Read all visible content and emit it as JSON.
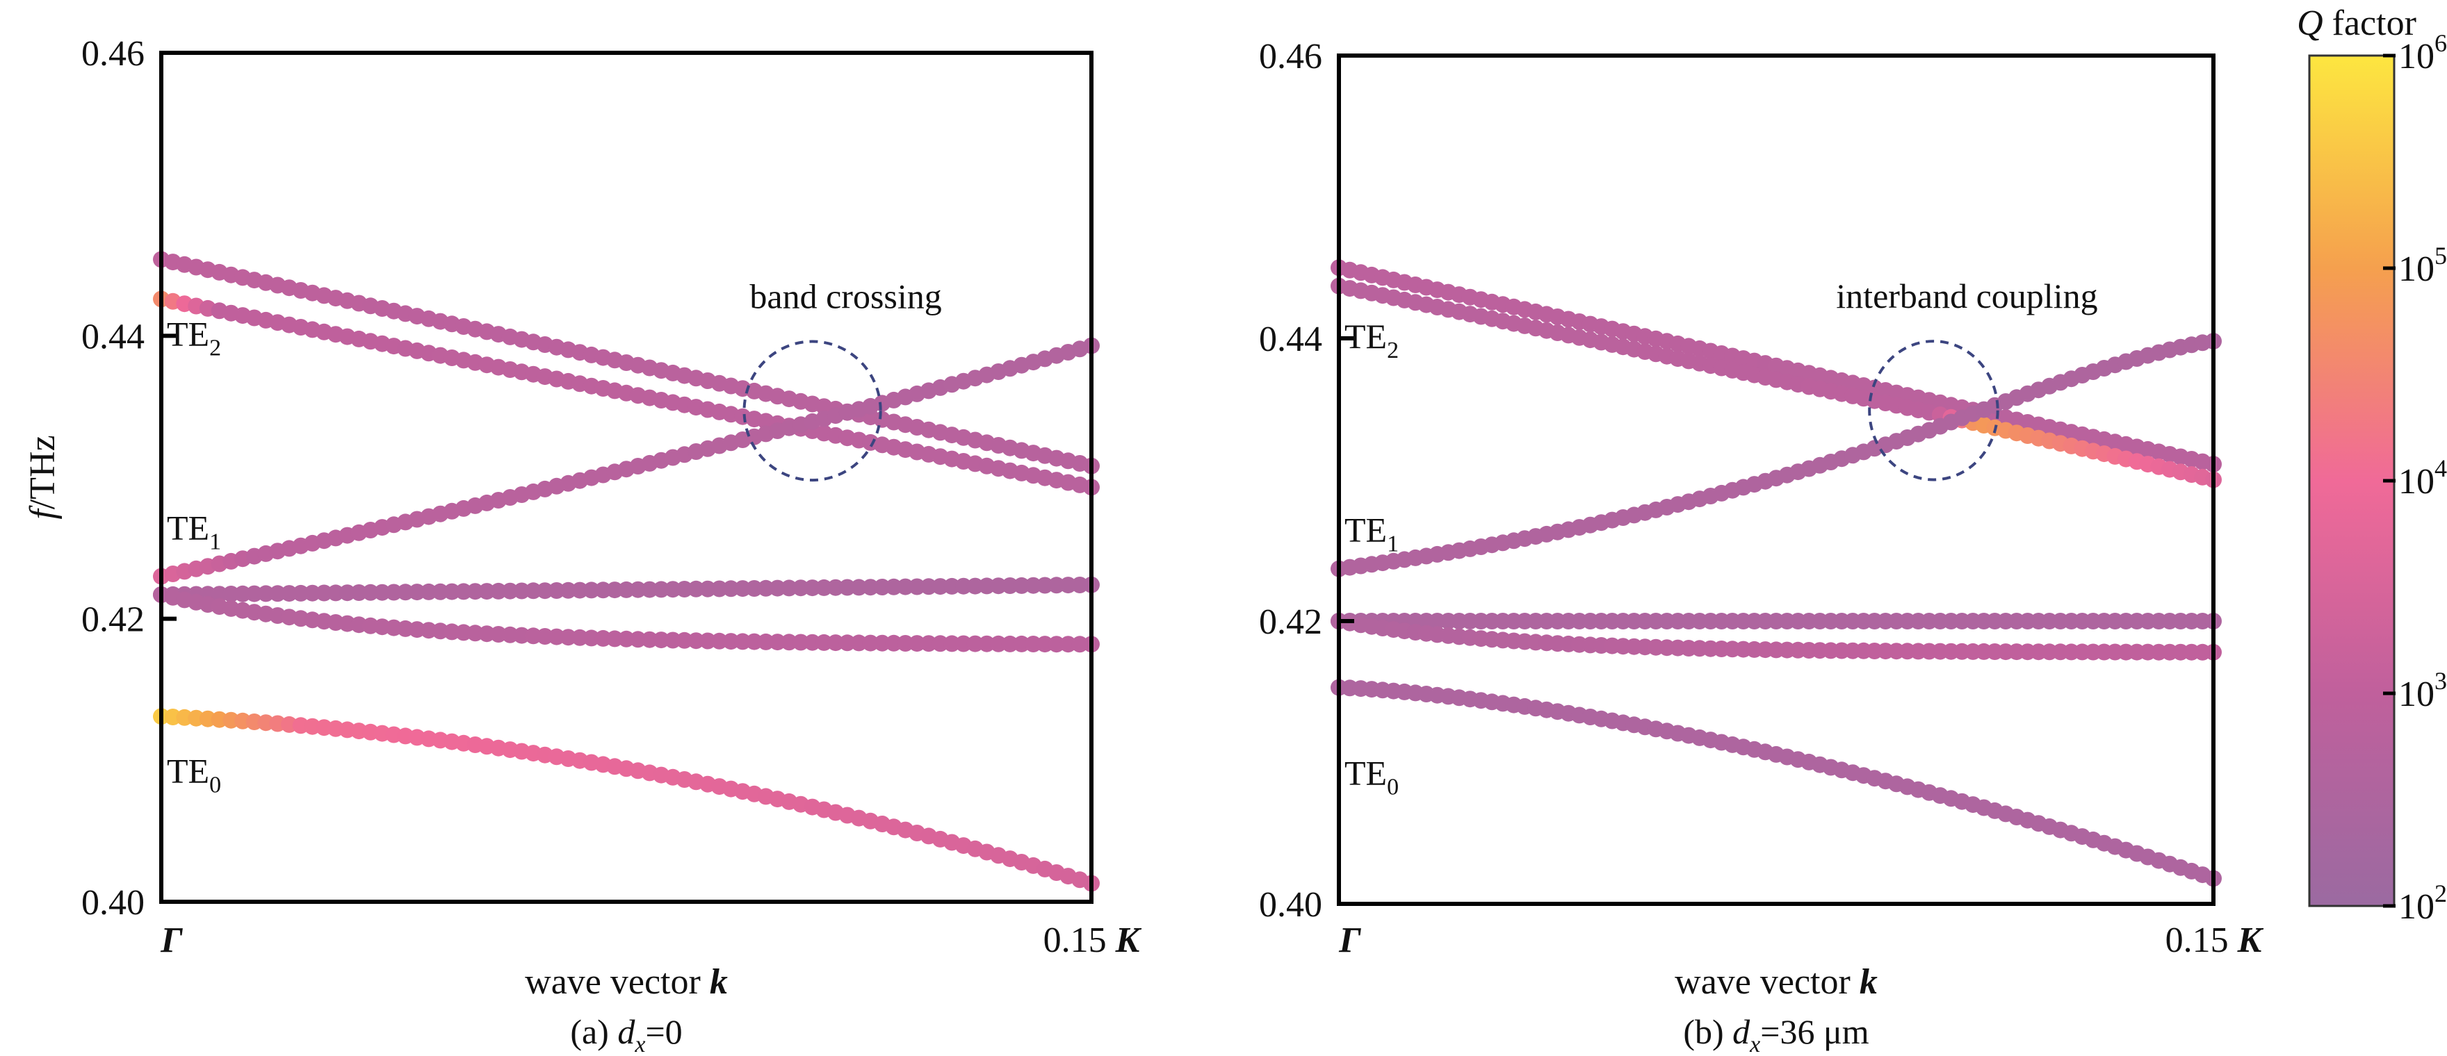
{
  "colors": {
    "q_1e2": "#9b6aa1",
    "q_1e3": "#c0609c",
    "q_1e4": "#f06a98",
    "q_1e5": "#f5a04e",
    "q_1e6": "#fde640",
    "annotation": "#3c4580"
  },
  "colorbar": {
    "title_symbol": "Q",
    "title_rest": " factor",
    "ticks": [
      {
        "base": "10",
        "exp": "2"
      },
      {
        "base": "10",
        "exp": "3"
      },
      {
        "base": "10",
        "exp": "4"
      },
      {
        "base": "10",
        "exp": "5"
      },
      {
        "base": "10",
        "exp": "6"
      }
    ]
  },
  "chart_data": [
    {
      "type": "scatter",
      "caption": {
        "prefix": "(a) ",
        "var": "d",
        "sub": "x",
        "suffix": "=0"
      },
      "xlabel": {
        "text": "wave vector ",
        "bold_italic": "k"
      },
      "ylabel": {
        "italic": "f",
        "rest": "/THz"
      },
      "xlim": [
        0,
        0.15
      ],
      "ylim": [
        0.4,
        0.46
      ],
      "xticks": [
        {
          "text": "Γ",
          "style": "bold-italic",
          "at": 0
        },
        {
          "text": "0.15 ",
          "extra": "K",
          "style": "mixed",
          "at": 0.15
        }
      ],
      "yticks": [
        "0.40",
        "0.42",
        "0.44",
        "0.46"
      ],
      "ytick_values": [
        0.4,
        0.42,
        0.44,
        0.46
      ],
      "mode_labels": [
        {
          "base": "TE",
          "sub": "2",
          "f": 0.4402
        },
        {
          "base": "TE",
          "sub": "1",
          "f": 0.4265
        },
        {
          "base": "TE",
          "sub": "0",
          "f": 0.4093
        }
      ],
      "annotation": {
        "text": "band crossing",
        "center": [
          0.105,
          0.4347
        ],
        "rx": 0.011,
        "ry": 0.0049
      },
      "series": [
        {
          "shape": "linear",
          "f0": 0.4454,
          "f1": 0.4308,
          "q0": 2.95,
          "q1": 2.75
        },
        {
          "shape": "linear",
          "f0": 0.4426,
          "f1": 0.4293,
          "q0": 4.6,
          "q1": 2.8,
          "qk": 3.0
        },
        {
          "shape": "rising",
          "f0": 0.423,
          "f1": 0.4393,
          "q0": 3.6,
          "q1": 2.6
        },
        {
          "shape": "flat",
          "f0": 0.4217,
          "f1": 0.4224,
          "q0": 2.6,
          "q1": 2.5
        },
        {
          "shape": "sat",
          "f0": 0.4217,
          "f1": 0.4182,
          "q0": 2.7,
          "q1": 2.9,
          "tau": 0.035
        },
        {
          "shape": "quad",
          "f0": 0.4131,
          "f1": 0.4013,
          "q0": 5.6,
          "q1": 3.4,
          "qk": 1.3
        }
      ]
    },
    {
      "type": "scatter",
      "caption": {
        "prefix": "(b) ",
        "var": "d",
        "sub": "x",
        "suffix": "=36 μm"
      },
      "xlabel": {
        "text": "wave vector ",
        "bold_italic": "k"
      },
      "ylabel": {
        "italic": "",
        "rest": ""
      },
      "xlim": [
        0,
        0.15
      ],
      "ylim": [
        0.4,
        0.46
      ],
      "xticks": [
        {
          "text": "Γ",
          "style": "bold-italic",
          "at": 0
        },
        {
          "text": "0.15 ",
          "extra": "K",
          "style": "mixed",
          "at": 0.15
        }
      ],
      "yticks": [
        "0.40",
        "0.42",
        "0.44",
        "0.46"
      ],
      "ytick_values": [
        0.4,
        0.42,
        0.44,
        0.46
      ],
      "mode_labels": [
        {
          "base": "TE",
          "sub": "2",
          "f": 0.4402
        },
        {
          "base": "TE",
          "sub": "1",
          "f": 0.4265
        },
        {
          "base": "TE",
          "sub": "0",
          "f": 0.4093
        }
      ],
      "annotation": {
        "text": "interband coupling",
        "center": [
          0.102,
          0.4349
        ],
        "rx": 0.011,
        "ry": 0.0049
      },
      "series": [
        {
          "shape": "linear",
          "f0": 0.445,
          "f1": 0.4311,
          "q0": 2.9,
          "q1": 2.8
        },
        {
          "shape": "knee_down",
          "f0": 0.4437,
          "fk": 0.4347,
          "xk": 0.102,
          "f1": 0.43,
          "q0": 2.8,
          "qk": 2.9,
          "q1": 3.6,
          "qpeak": 4.9
        },
        {
          "shape": "knee_up",
          "f0": 0.4237,
          "fk": 0.4336,
          "xk": 0.102,
          "f1": 0.4398,
          "q0": 2.6,
          "q1": 2.5
        },
        {
          "shape": "flat",
          "f0": 0.42,
          "f1": 0.42,
          "q0": 2.5,
          "q1": 2.5
        },
        {
          "shape": "sat",
          "f0": 0.42,
          "f1": 0.4178,
          "q0": 2.6,
          "q1": 3.0,
          "tau": 0.03
        },
        {
          "shape": "quad2",
          "f0": 0.4153,
          "f1": 0.4018,
          "q0": 2.5,
          "q1": 2.5
        }
      ]
    }
  ]
}
